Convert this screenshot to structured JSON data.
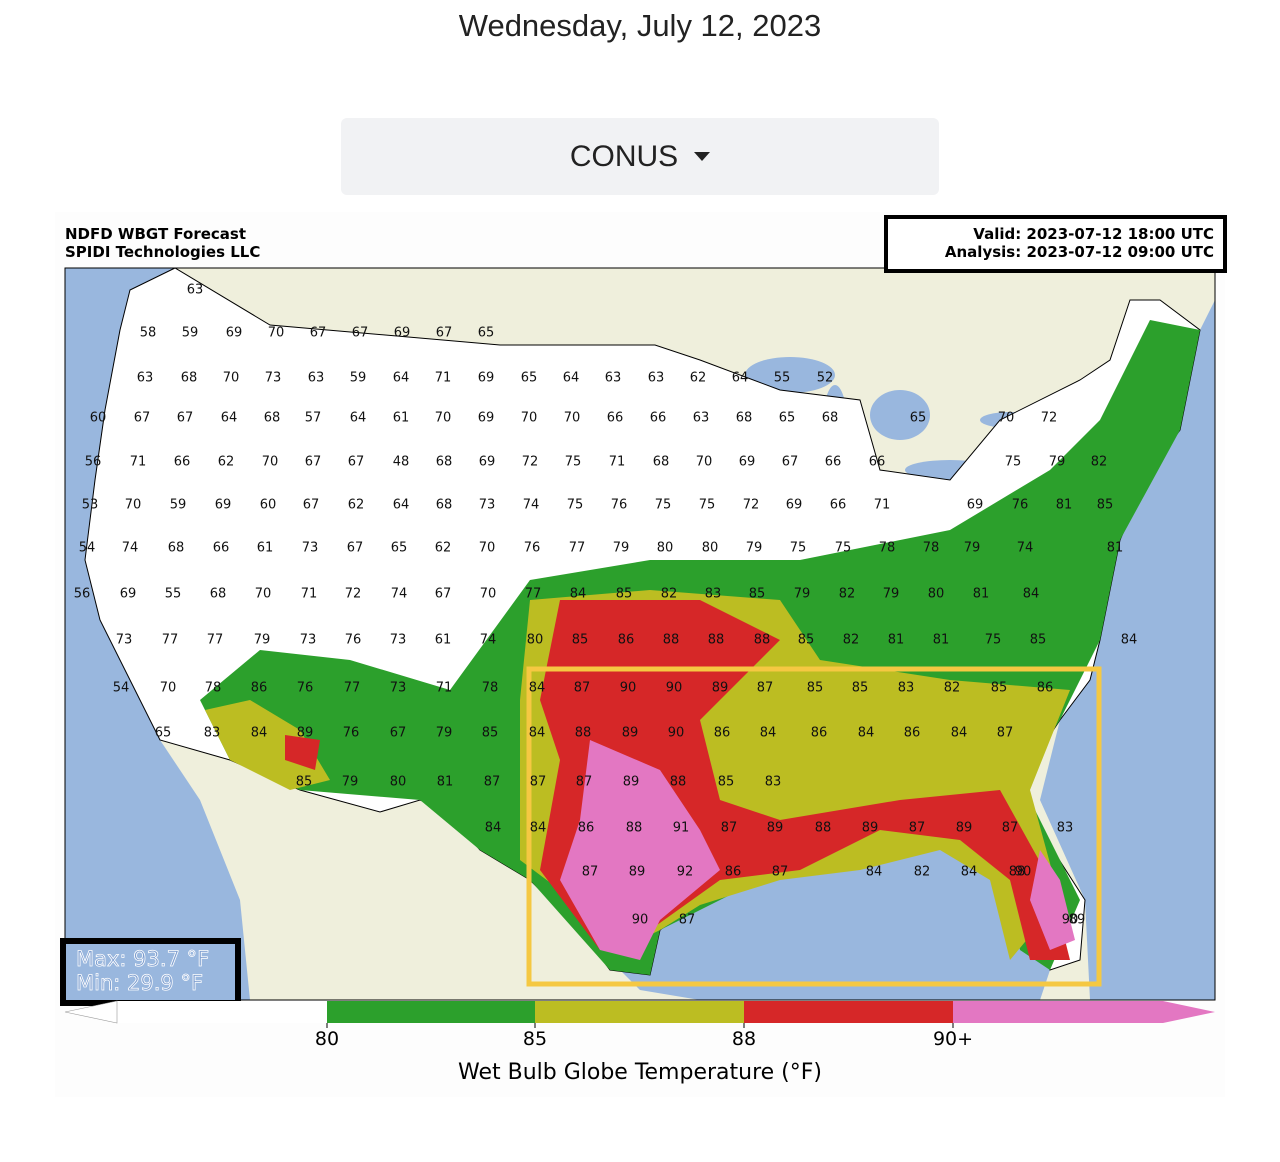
{
  "header": {
    "date": "Wednesday, July 12, 2023",
    "dropdown": "CONUS"
  },
  "map": {
    "title_line1": "NDFD WBGT Forecast",
    "title_line2": "SPIDI Technologies LLC",
    "valid": "Valid: 2023-07-12 18:00 UTC",
    "analysis": "Analysis: 2023-07-12 09:00 UTC",
    "max": "Max: 93.7 °F",
    "min": "Min: 29.9 °F",
    "station_rows": [
      [
        63
      ],
      [
        58,
        59,
        69,
        70,
        67,
        67,
        69,
        67,
        65
      ],
      [
        63,
        68,
        70,
        73,
        63,
        59,
        64,
        71,
        69,
        65,
        64,
        63,
        63,
        62,
        64,
        55,
        52
      ],
      [
        60,
        67,
        67,
        64,
        68,
        57,
        64,
        61,
        70,
        69,
        70,
        70,
        66,
        66,
        63,
        68,
        65,
        68,
        65,
        70,
        72
      ],
      [
        56,
        71,
        66,
        62,
        70,
        67,
        67,
        48,
        68,
        69,
        72,
        75,
        71,
        68,
        70,
        69,
        67,
        66,
        66,
        75,
        79,
        82
      ],
      [
        53,
        70,
        59,
        69,
        60,
        67,
        62,
        64,
        68,
        73,
        74,
        75,
        76,
        75,
        75,
        72,
        69,
        66,
        71,
        69,
        76,
        81,
        85
      ],
      [
        54,
        74,
        68,
        66,
        61,
        73,
        67,
        65,
        62,
        70,
        76,
        77,
        79,
        80,
        80,
        79,
        75,
        75,
        78,
        78,
        79,
        74,
        81
      ],
      [
        56,
        69,
        55,
        68,
        70,
        71,
        72,
        74,
        67,
        70,
        77,
        84,
        85,
        82,
        83,
        85,
        79,
        82,
        79,
        80,
        81,
        84
      ],
      [
        73,
        77,
        77,
        79,
        73,
        76,
        73,
        61,
        74,
        80,
        85,
        86,
        88,
        88,
        88,
        85,
        82,
        81,
        81,
        75,
        85,
        84
      ],
      [
        54,
        70,
        78,
        86,
        76,
        77,
        73,
        71,
        78,
        84,
        87,
        90,
        90,
        89,
        87,
        85,
        85,
        83,
        82,
        85,
        86
      ],
      [
        65,
        83,
        84,
        89,
        76,
        67,
        79,
        85,
        84,
        88,
        89,
        90,
        86,
        84,
        86,
        84,
        86,
        84,
        87
      ],
      [
        85,
        79,
        80,
        81,
        87,
        87,
        87,
        89,
        88,
        85,
        83
      ],
      [
        84,
        84,
        86,
        88,
        91,
        87,
        89,
        88,
        89,
        87,
        89,
        87,
        83
      ],
      [
        87,
        89,
        92,
        86,
        87,
        84,
        82,
        84,
        88,
        90
      ],
      [
        90,
        87,
        90,
        89
      ]
    ]
  },
  "colorbar": {
    "label": "Wet Bulb Globe Temperature (°F)",
    "ticks": [
      80,
      85,
      88,
      {
        "value": 90,
        "label": "90+"
      }
    ],
    "colors": [
      "#ffffff",
      "#2ca02c",
      "#bcbd22",
      "#d62728",
      "#e377c2"
    ]
  }
}
